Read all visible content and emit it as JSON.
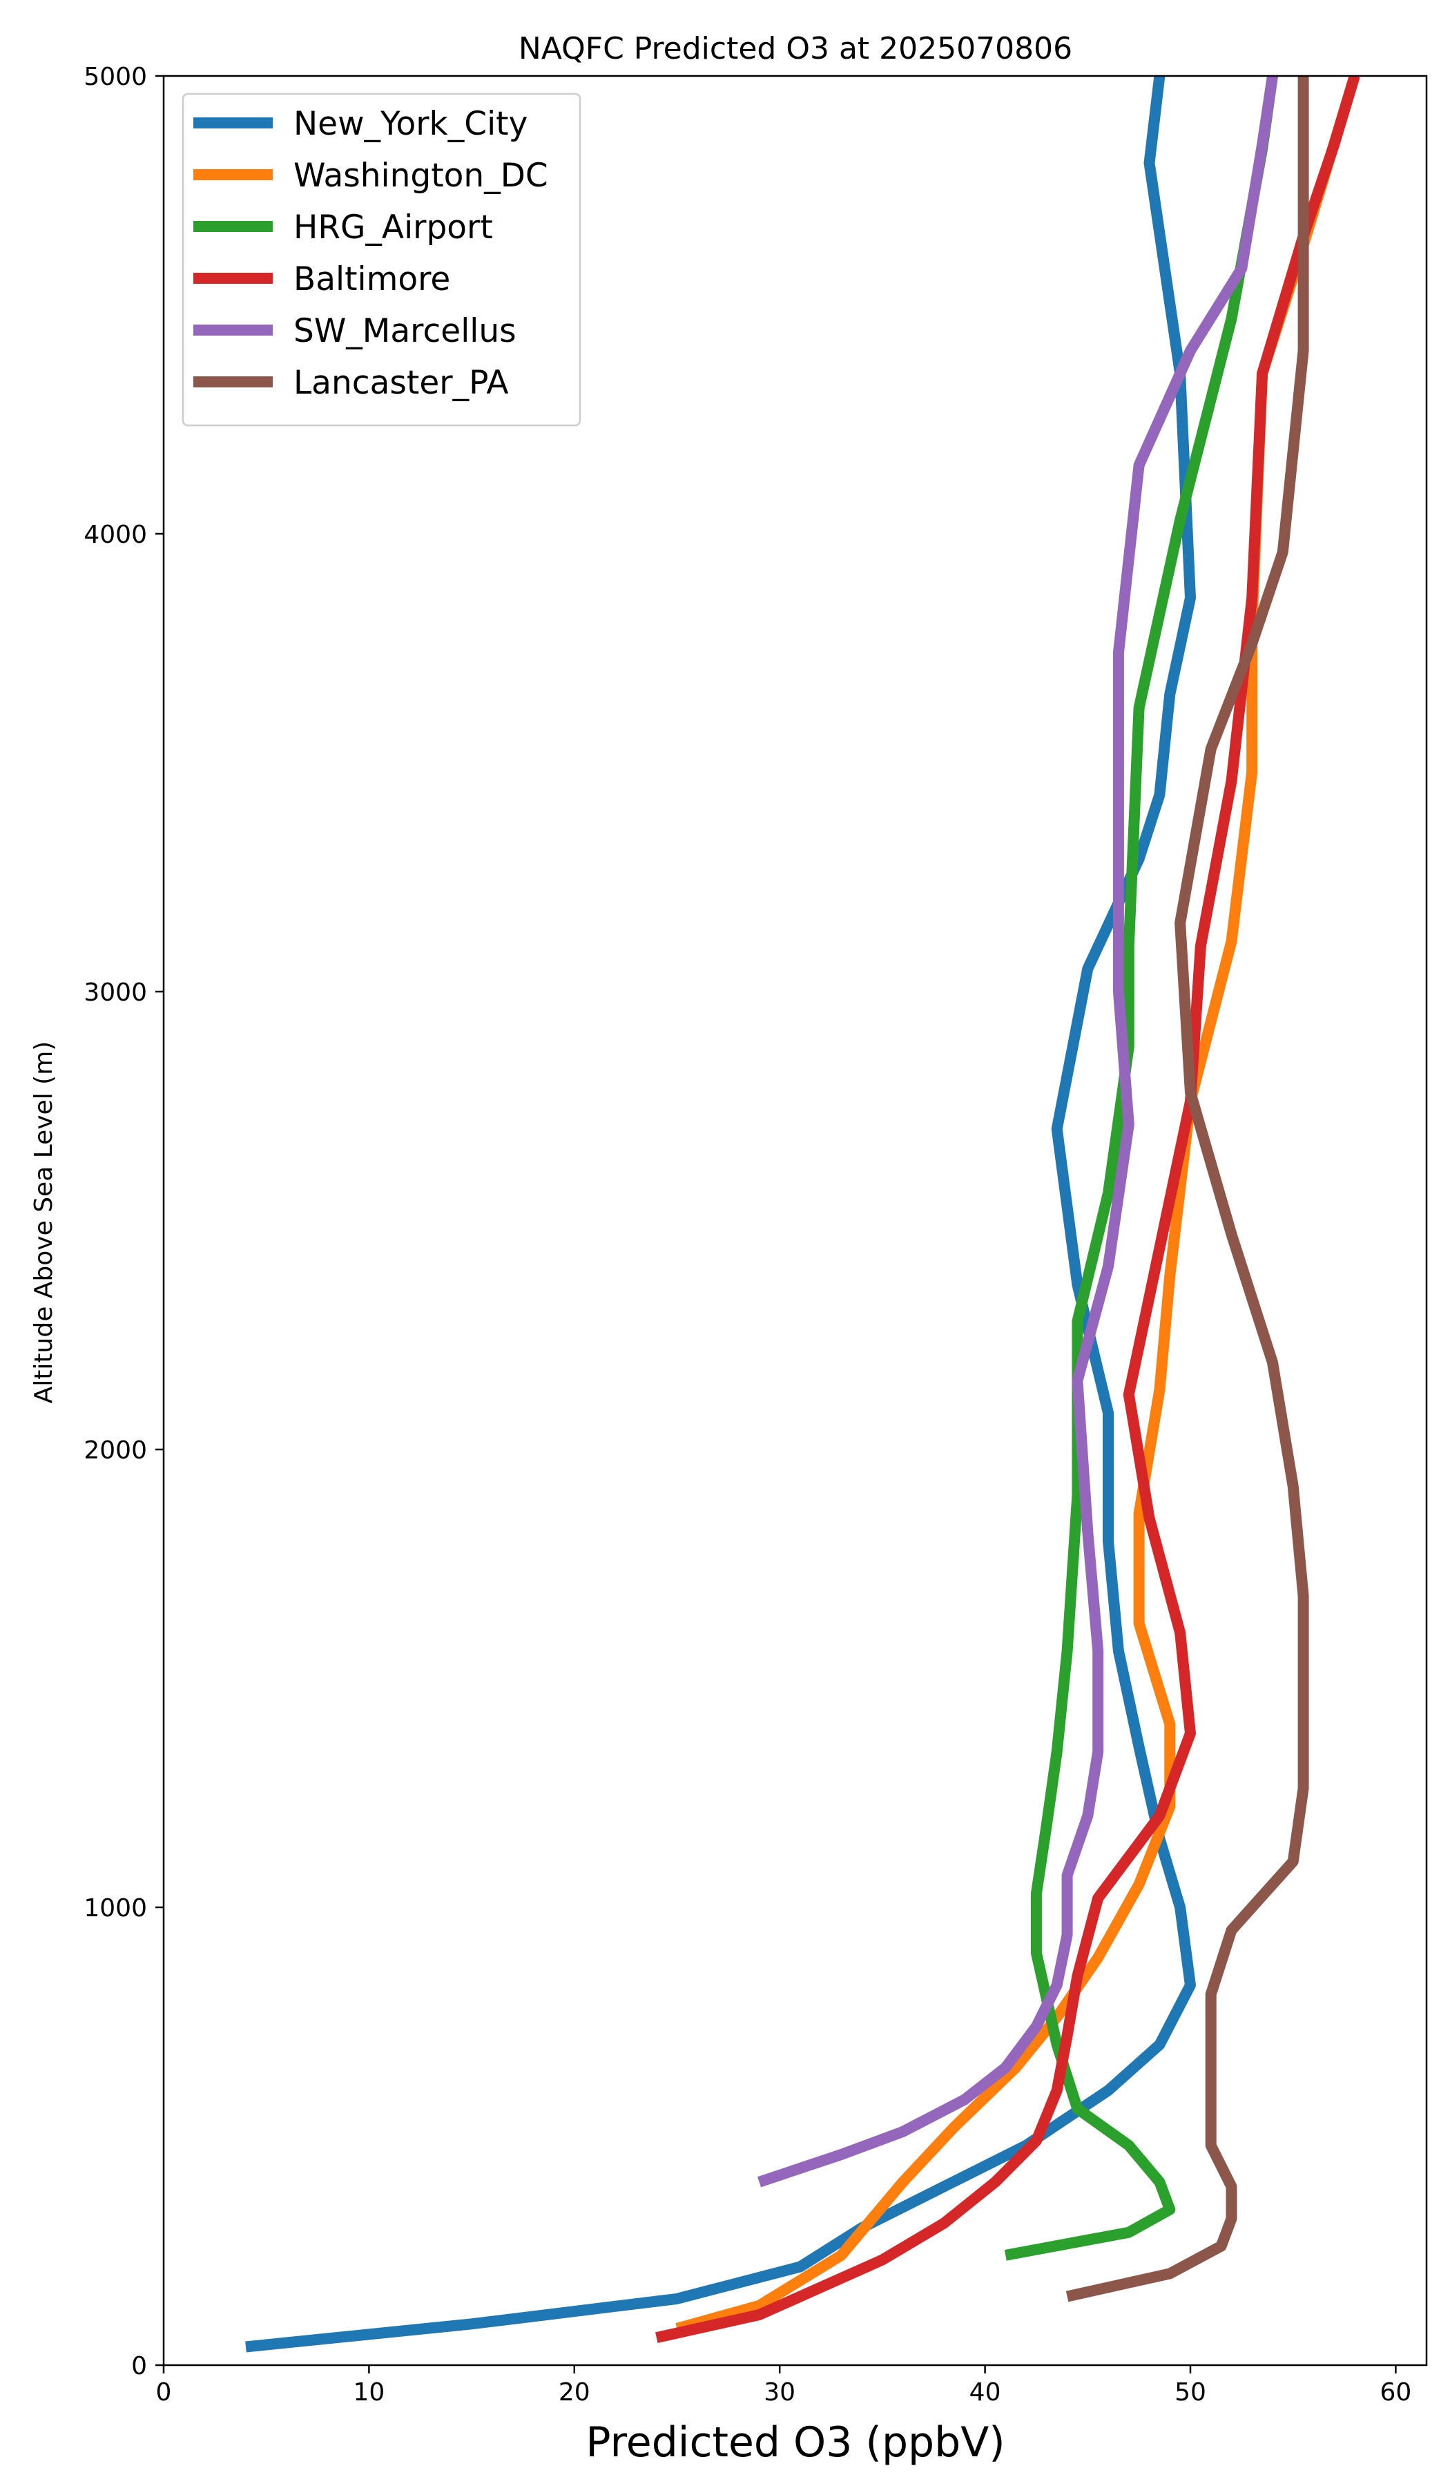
{
  "chart_data": {
    "type": "line",
    "title": "NAQFC Predicted O3 at 2025070806",
    "xlabel": "Predicted O3 (ppbV)",
    "ylabel": "Altitude Above Sea Level (m)",
    "xlim": [
      0,
      61.5
    ],
    "ylim": [
      0,
      5000
    ],
    "xticks": [
      0,
      10,
      20,
      30,
      40,
      50,
      60
    ],
    "yticks": [
      0,
      1000,
      2000,
      3000,
      4000,
      5000
    ],
    "grid": false,
    "legend_position": "upper-left",
    "series": [
      {
        "name": "New_York_City",
        "color": "#1f77b4",
        "points": [
          [
            4,
            40
          ],
          [
            15,
            90
          ],
          [
            25,
            145
          ],
          [
            31,
            215
          ],
          [
            34,
            300
          ],
          [
            38,
            390
          ],
          [
            42,
            480
          ],
          [
            46,
            600
          ],
          [
            48.5,
            700
          ],
          [
            50,
            830
          ],
          [
            49.5,
            1000
          ],
          [
            48.5,
            1150
          ],
          [
            47.5,
            1350
          ],
          [
            46.5,
            1560
          ],
          [
            46,
            1800
          ],
          [
            46,
            2080
          ],
          [
            44.5,
            2360
          ],
          [
            43.5,
            2700
          ],
          [
            45,
            3050
          ],
          [
            47.5,
            3290
          ],
          [
            48.5,
            3430
          ],
          [
            49,
            3650
          ],
          [
            50,
            3860
          ],
          [
            49.5,
            4350
          ],
          [
            48,
            4810
          ],
          [
            48.5,
            5000
          ]
        ]
      },
      {
        "name": "Washington_DC",
        "color": "#ff7f0e",
        "points": [
          [
            25,
            80
          ],
          [
            29,
            130
          ],
          [
            33,
            240
          ],
          [
            36,
            400
          ],
          [
            38.5,
            520
          ],
          [
            41.5,
            650
          ],
          [
            43.5,
            760
          ],
          [
            45.5,
            890
          ],
          [
            47.5,
            1050
          ],
          [
            49,
            1220
          ],
          [
            49,
            1400
          ],
          [
            47.5,
            1620
          ],
          [
            47.5,
            1860
          ],
          [
            48.5,
            2130
          ],
          [
            49,
            2380
          ],
          [
            50,
            2760
          ],
          [
            52,
            3110
          ],
          [
            53,
            3480
          ],
          [
            53,
            3800
          ],
          [
            53.5,
            4350
          ],
          [
            55.5,
            4630
          ],
          [
            58,
            5000
          ]
        ]
      },
      {
        "name": "HRG_Airport",
        "color": "#2ca02c",
        "points": [
          [
            41,
            240
          ],
          [
            47,
            290
          ],
          [
            49,
            340
          ],
          [
            48.5,
            400
          ],
          [
            47,
            480
          ],
          [
            44.5,
            560
          ],
          [
            43.5,
            700
          ],
          [
            42.5,
            900
          ],
          [
            42.5,
            1030
          ],
          [
            43,
            1180
          ],
          [
            43.5,
            1340
          ],
          [
            44,
            1560
          ],
          [
            44.5,
            1900
          ],
          [
            44.5,
            2280
          ],
          [
            46,
            2560
          ],
          [
            47,
            2880
          ],
          [
            47,
            3100
          ],
          [
            47.5,
            3620
          ],
          [
            49.5,
            4030
          ],
          [
            52,
            4470
          ],
          [
            53.5,
            4840
          ],
          [
            54,
            5000
          ]
        ]
      },
      {
        "name": "Baltimore",
        "color": "#d62728",
        "points": [
          [
            24,
            60
          ],
          [
            29,
            110
          ],
          [
            35,
            230
          ],
          [
            38,
            310
          ],
          [
            40.5,
            400
          ],
          [
            42.5,
            490
          ],
          [
            43.5,
            600
          ],
          [
            44,
            720
          ],
          [
            44.5,
            850
          ],
          [
            45.5,
            1020
          ],
          [
            48.5,
            1200
          ],
          [
            50,
            1380
          ],
          [
            49.5,
            1600
          ],
          [
            48,
            1850
          ],
          [
            47,
            2120
          ],
          [
            48.5,
            2440
          ],
          [
            50,
            2760
          ],
          [
            50.5,
            3100
          ],
          [
            52,
            3460
          ],
          [
            53,
            3860
          ],
          [
            53.5,
            4350
          ],
          [
            55.5,
            4650
          ],
          [
            57,
            4850
          ],
          [
            58,
            5000
          ]
        ]
      },
      {
        "name": "SW_Marcellus",
        "color": "#9467bd",
        "points": [
          [
            29,
            400
          ],
          [
            33,
            460
          ],
          [
            36,
            510
          ],
          [
            39,
            580
          ],
          [
            41,
            650
          ],
          [
            42.5,
            740
          ],
          [
            43.5,
            830
          ],
          [
            44,
            940
          ],
          [
            44,
            1070
          ],
          [
            45,
            1200
          ],
          [
            45.5,
            1340
          ],
          [
            45.5,
            1560
          ],
          [
            45,
            1820
          ],
          [
            44.5,
            2150
          ],
          [
            46,
            2400
          ],
          [
            47,
            2710
          ],
          [
            46.5,
            3000
          ],
          [
            46.5,
            3380
          ],
          [
            46.5,
            3740
          ],
          [
            47.5,
            4150
          ],
          [
            50,
            4400
          ],
          [
            52.5,
            4580
          ],
          [
            53.5,
            4850
          ],
          [
            54,
            5000
          ]
        ]
      },
      {
        "name": "Lancaster_PA",
        "color": "#8c564b",
        "points": [
          [
            44,
            150
          ],
          [
            49,
            200
          ],
          [
            51.5,
            260
          ],
          [
            52,
            320
          ],
          [
            52,
            390
          ],
          [
            51,
            480
          ],
          [
            51,
            560
          ],
          [
            51,
            680
          ],
          [
            51,
            810
          ],
          [
            52,
            950
          ],
          [
            55,
            1100
          ],
          [
            55.5,
            1260
          ],
          [
            55.5,
            1460
          ],
          [
            55.5,
            1680
          ],
          [
            55,
            1920
          ],
          [
            54,
            2190
          ],
          [
            52,
            2470
          ],
          [
            50,
            2780
          ],
          [
            49.5,
            3150
          ],
          [
            51,
            3530
          ],
          [
            53,
            3760
          ],
          [
            54.5,
            3960
          ],
          [
            55.5,
            4400
          ],
          [
            55.5,
            4860
          ],
          [
            55.5,
            5000
          ]
        ]
      }
    ]
  }
}
